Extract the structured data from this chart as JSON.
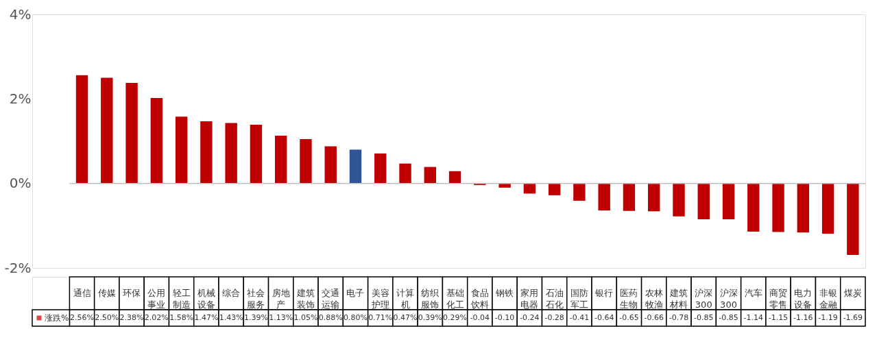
{
  "chart_data": {
    "type": "bar",
    "categories": [
      "通信",
      "传媒",
      "环保",
      "公用事业",
      "轻工制造",
      "机械设备",
      "综合",
      "社会服务",
      "房地产",
      "建筑装饰",
      "交通运输",
      "电子",
      "美容护理",
      "计算机",
      "纺织服饰",
      "基础化工",
      "食品饮料",
      "钢铁",
      "家用电器",
      "石油石化",
      "国防军工",
      "银行",
      "医药生物",
      "农林牧渔",
      "建筑材料",
      "沪深300",
      "沪深300",
      "汽车",
      "商贸零售",
      "电力设备",
      "非银金融",
      "煤炭"
    ],
    "series": [
      {
        "name": "涨跌%",
        "color": "#c00000",
        "colors": [
          "#c00000",
          "#c00000",
          "#c00000",
          "#c00000",
          "#c00000",
          "#c00000",
          "#c00000",
          "#c00000",
          "#c00000",
          "#c00000",
          "#c00000",
          "#2f5597",
          "#c00000",
          "#c00000",
          "#c00000",
          "#c00000",
          "#c00000",
          "#c00000",
          "#c00000",
          "#c00000",
          "#c00000",
          "#c00000",
          "#c00000",
          "#c00000",
          "#c00000",
          "#c00000",
          "#c00000",
          "#c00000",
          "#c00000",
          "#c00000",
          "#c00000",
          "#c00000"
        ],
        "values": [
          2.56,
          2.5,
          2.38,
          2.02,
          1.58,
          1.47,
          1.43,
          1.39,
          1.13,
          1.05,
          0.88,
          0.8,
          0.71,
          0.47,
          0.39,
          0.29,
          -0.04,
          -0.1,
          -0.24,
          -0.28,
          -0.41,
          -0.64,
          -0.65,
          -0.66,
          -0.78,
          -0.85,
          -0.85,
          -1.14,
          -1.15,
          -1.16,
          -1.19,
          -1.69
        ],
        "value_labels": [
          "2.56%",
          "2.50%",
          "2.38%",
          "2.02%",
          "1.58%",
          "1.47%",
          "1.43%",
          "1.39%",
          "1.13%",
          "1.05%",
          "0.88%",
          "0.80%",
          "0.71%",
          "0.47%",
          "0.39%",
          "0.29%",
          "-0.04",
          "-0.10",
          "-0.24",
          "-0.28",
          "-0.41",
          "-0.64",
          "-0.65",
          "-0.66",
          "-0.78",
          "-0.85",
          "-0.85",
          "-1.14",
          "-1.15",
          "-1.16",
          "-1.19",
          "-1.69"
        ]
      }
    ],
    "ylim": [
      -2,
      4
    ],
    "yticks": [
      {
        "value": -2,
        "label": "-2%"
      },
      {
        "value": 0,
        "label": "0%"
      },
      {
        "value": 2,
        "label": "2%"
      },
      {
        "value": 4,
        "label": "4%"
      }
    ],
    "ref_lines": [
      {
        "axis": "y",
        "value": 0,
        "color": "#bfbfbf"
      }
    ],
    "legend": "bottom left"
  }
}
